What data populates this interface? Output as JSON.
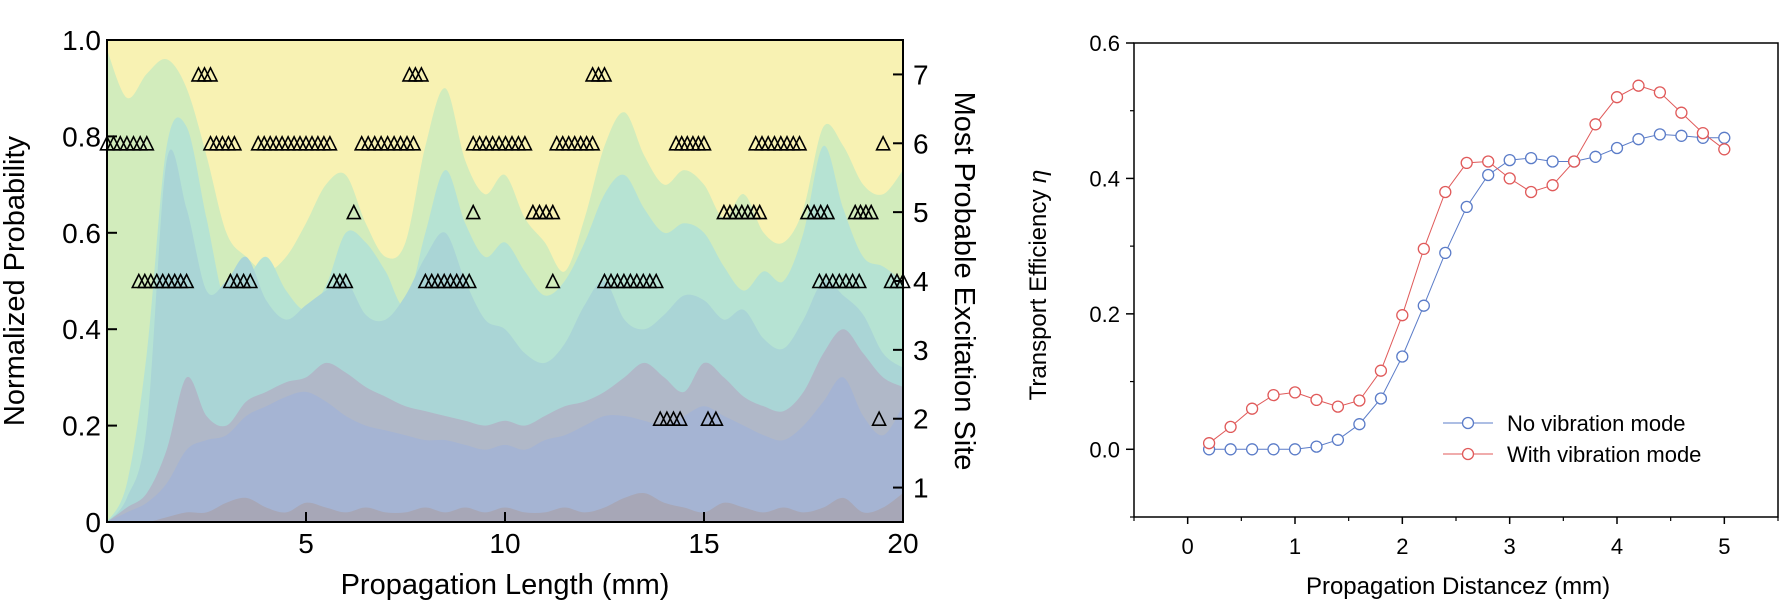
{
  "chart_data": [
    {
      "type": "area",
      "xlabel": "Propagation Length (mm)",
      "ylabel": "Normalized Probability",
      "y2label": "Most Probable Excitation Site",
      "xlim": [
        0,
        20
      ],
      "ylim": [
        0,
        1.0
      ],
      "y2lim": [
        0.5,
        7.5
      ],
      "x_ticks": [
        0,
        5,
        10,
        15,
        20
      ],
      "y_ticks": [
        0,
        0.2,
        0.4,
        0.6,
        0.8,
        1.0
      ],
      "y_tick_labels": [
        "0",
        "0.2",
        "0.4",
        "0.6",
        "0.8",
        "1.0"
      ],
      "y2_ticks": [
        1,
        2,
        3,
        4,
        5,
        6,
        7
      ],
      "grid": false,
      "x": [
        0,
        0.5,
        1,
        1.5,
        2,
        2.5,
        3,
        3.5,
        4,
        4.5,
        5,
        5.5,
        6,
        6.5,
        7,
        7.5,
        8,
        8.5,
        9,
        9.5,
        10,
        10.5,
        11,
        11.5,
        12,
        12.5,
        13,
        13.5,
        14,
        14.5,
        15,
        15.5,
        16,
        16.5,
        17,
        17.5,
        18,
        18.5,
        19,
        19.5,
        20
      ],
      "layers": [
        {
          "name": "",
          "color": "#a7a7b7",
          "values": [
            0,
            0,
            0,
            0.01,
            0.02,
            0.02,
            0.04,
            0.05,
            0.03,
            0.02,
            0.04,
            0.03,
            0.02,
            0.03,
            0.02,
            0.02,
            0.03,
            0.02,
            0.03,
            0.02,
            0.03,
            0.02,
            0.02,
            0.03,
            0.02,
            0.03,
            0.05,
            0.06,
            0.04,
            0.03,
            0.02,
            0.04,
            0.03,
            0.02,
            0.03,
            0.02,
            0.03,
            0.05,
            0.02,
            0.03,
            0.06
          ]
        },
        {
          "name": "",
          "color": "#a5b4d3",
          "values": [
            0,
            0.02,
            0.04,
            0.08,
            0.15,
            0.17,
            0.18,
            0.22,
            0.24,
            0.26,
            0.27,
            0.25,
            0.22,
            0.2,
            0.19,
            0.18,
            0.17,
            0.17,
            0.16,
            0.15,
            0.16,
            0.15,
            0.17,
            0.18,
            0.2,
            0.22,
            0.22,
            0.21,
            0.2,
            0.22,
            0.24,
            0.22,
            0.2,
            0.18,
            0.17,
            0.2,
            0.25,
            0.3,
            0.22,
            0.18,
            0.24
          ]
        },
        {
          "name": "",
          "color": "#b0b8c8",
          "values": [
            0,
            0.03,
            0.06,
            0.15,
            0.3,
            0.22,
            0.2,
            0.25,
            0.27,
            0.29,
            0.3,
            0.33,
            0.31,
            0.28,
            0.26,
            0.24,
            0.23,
            0.22,
            0.21,
            0.2,
            0.21,
            0.2,
            0.22,
            0.24,
            0.25,
            0.27,
            0.3,
            0.33,
            0.3,
            0.27,
            0.33,
            0.3,
            0.26,
            0.24,
            0.23,
            0.27,
            0.35,
            0.4,
            0.35,
            0.3,
            0.28
          ]
        },
        {
          "name": "",
          "color": "#aad5d6",
          "values": [
            0,
            0.05,
            0.2,
            0.75,
            0.65,
            0.48,
            0.5,
            0.55,
            0.46,
            0.42,
            0.45,
            0.48,
            0.5,
            0.43,
            0.42,
            0.47,
            0.55,
            0.6,
            0.5,
            0.42,
            0.4,
            0.35,
            0.33,
            0.37,
            0.45,
            0.5,
            0.42,
            0.4,
            0.43,
            0.47,
            0.46,
            0.42,
            0.44,
            0.38,
            0.36,
            0.42,
            0.5,
            0.47,
            0.43,
            0.35,
            0.32
          ]
        },
        {
          "name": "",
          "color": "#b6e3d3",
          "values": [
            0,
            0.08,
            0.35,
            0.78,
            0.82,
            0.63,
            0.45,
            0.5,
            0.55,
            0.48,
            0.44,
            0.49,
            0.6,
            0.58,
            0.52,
            0.45,
            0.6,
            0.73,
            0.62,
            0.55,
            0.58,
            0.52,
            0.47,
            0.5,
            0.58,
            0.68,
            0.72,
            0.65,
            0.6,
            0.62,
            0.6,
            0.53,
            0.48,
            0.52,
            0.5,
            0.6,
            0.78,
            0.65,
            0.55,
            0.53,
            0.5
          ]
        },
        {
          "name": "",
          "color": "#d2ecbc",
          "values": [
            0.98,
            0.88,
            0.93,
            0.96,
            0.9,
            0.76,
            0.6,
            0.55,
            0.52,
            0.55,
            0.62,
            0.7,
            0.72,
            0.62,
            0.55,
            0.58,
            0.78,
            0.9,
            0.75,
            0.68,
            0.72,
            0.63,
            0.58,
            0.52,
            0.63,
            0.78,
            0.85,
            0.76,
            0.7,
            0.73,
            0.7,
            0.63,
            0.68,
            0.6,
            0.58,
            0.65,
            0.82,
            0.78,
            0.7,
            0.68,
            0.73
          ]
        },
        {
          "name": "",
          "color": "#f8f2b3",
          "values": [
            1,
            1,
            1,
            1,
            1,
            1,
            1,
            1,
            1,
            1,
            1,
            1,
            1,
            1,
            1,
            1,
            1,
            1,
            1,
            1,
            1,
            1,
            1,
            1,
            1,
            1,
            1,
            1,
            1,
            1,
            1,
            1,
            1,
            1,
            1,
            1,
            1,
            1,
            1,
            1,
            1
          ]
        }
      ],
      "markers": {
        "symbol": "triangle",
        "axis": "y2",
        "runs": [
          {
            "site": 7,
            "x": [
              2.3,
              2.6
            ]
          },
          {
            "site": 7,
            "x": [
              7.6,
              7.9
            ]
          },
          {
            "site": 7,
            "x": [
              12.2,
              12.5
            ]
          },
          {
            "site": 6,
            "x": [
              0,
              1.0
            ]
          },
          {
            "site": 6,
            "x": [
              2.6,
              3.2
            ]
          },
          {
            "site": 6,
            "x": [
              3.8,
              5.6
            ]
          },
          {
            "site": 6,
            "x": [
              6.4,
              7.7
            ]
          },
          {
            "site": 6,
            "x": [
              9.2,
              10.5
            ]
          },
          {
            "site": 6,
            "x": [
              11.3,
              12.2
            ]
          },
          {
            "site": 6,
            "x": [
              14.3,
              15.0
            ]
          },
          {
            "site": 6,
            "x": [
              16.3,
              17.4
            ]
          },
          {
            "site": 6,
            "x": [
              19.5,
              19.5
            ]
          },
          {
            "site": 5,
            "x": [
              6.2,
              6.2
            ]
          },
          {
            "site": 5,
            "x": [
              9.2,
              9.2
            ]
          },
          {
            "site": 5,
            "x": [
              10.7,
              11.2
            ]
          },
          {
            "site": 5,
            "x": [
              15.5,
              16.4
            ]
          },
          {
            "site": 5,
            "x": [
              17.6,
              18.1
            ]
          },
          {
            "site": 5,
            "x": [
              18.8,
              19.2
            ]
          },
          {
            "site": 4,
            "x": [
              0.8,
              2.0
            ]
          },
          {
            "site": 4,
            "x": [
              3.1,
              3.6
            ]
          },
          {
            "site": 4,
            "x": [
              5.7,
              6.0
            ]
          },
          {
            "site": 4,
            "x": [
              8.0,
              9.1
            ]
          },
          {
            "site": 4,
            "x": [
              11.2,
              11.2
            ]
          },
          {
            "site": 4,
            "x": [
              12.5,
              13.8
            ]
          },
          {
            "site": 4,
            "x": [
              17.9,
              18.9
            ]
          },
          {
            "site": 4,
            "x": [
              19.7,
              20.0
            ]
          },
          {
            "site": 2,
            "x": [
              13.9,
              14.4
            ]
          },
          {
            "site": 2,
            "x": [
              15.1,
              15.3
            ]
          },
          {
            "site": 2,
            "x": [
              19.4,
              19.4
            ]
          }
        ]
      }
    },
    {
      "type": "line",
      "xlabel_prefix": "Propagation Distance",
      "xlabel_var": "z",
      "xlabel_suffix": " (mm)",
      "ylabel_prefix": "Transport Efficiency ",
      "ylabel_var": "η",
      "xlim": [
        -0.5,
        5.5
      ],
      "ylim": [
        -0.1,
        0.6
      ],
      "x_ticks": [
        0,
        1,
        2,
        3,
        4,
        5
      ],
      "y_ticks": [
        0.0,
        0.2,
        0.4,
        0.6
      ],
      "y_tick_labels": [
        "0.0",
        "0.2",
        "0.4",
        "0.6"
      ],
      "grid": false,
      "legend_position": "bottom-right",
      "x": [
        0.2,
        0.4,
        0.6,
        0.8,
        1.0,
        1.2,
        1.4,
        1.6,
        1.8,
        2.0,
        2.2,
        2.4,
        2.6,
        2.8,
        3.0,
        3.2,
        3.4,
        3.6,
        3.8,
        4.0,
        4.2,
        4.4,
        4.6,
        4.8,
        5.0
      ],
      "series": [
        {
          "name": "No vibration mode",
          "color": "#5b7cc8",
          "values": [
            0.0,
            0.0,
            0.0,
            0.0,
            0.0,
            0.004,
            0.014,
            0.037,
            0.075,
            0.137,
            0.212,
            0.29,
            0.358,
            0.405,
            0.427,
            0.43,
            0.425,
            0.425,
            0.432,
            0.445,
            0.458,
            0.465,
            0.463,
            0.46,
            0.46
          ]
        },
        {
          "name": "With vibration mode",
          "color": "#e05a5a",
          "values": [
            0.009,
            0.033,
            0.06,
            0.08,
            0.084,
            0.073,
            0.063,
            0.072,
            0.116,
            0.198,
            0.296,
            0.38,
            0.423,
            0.425,
            0.4,
            0.38,
            0.39,
            0.425,
            0.48,
            0.52,
            0.537,
            0.527,
            0.497,
            0.467,
            0.443
          ]
        }
      ]
    }
  ]
}
